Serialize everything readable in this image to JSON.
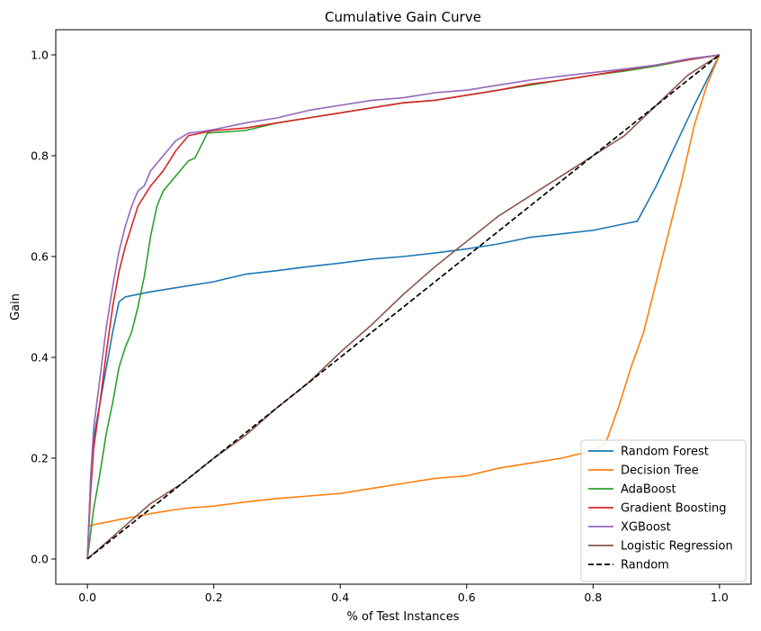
{
  "chart_data": {
    "type": "line",
    "title": "Cumulative Gain Curve",
    "xlabel": "% of Test Instances",
    "ylabel": "Gain",
    "xlim": [
      -0.05,
      1.05
    ],
    "ylim": [
      -0.05,
      1.05
    ],
    "xticks": [
      0.0,
      0.2,
      0.4,
      0.6,
      0.8,
      1.0
    ],
    "yticks": [
      0.0,
      0.2,
      0.4,
      0.6,
      0.8,
      1.0
    ],
    "xtick_labels": [
      "0.0",
      "0.2",
      "0.4",
      "0.6",
      "0.8",
      "1.0"
    ],
    "ytick_labels": [
      "0.0",
      "0.2",
      "0.4",
      "0.6",
      "0.8",
      "1.0"
    ],
    "grid": false,
    "legend": "lower-right",
    "series": [
      {
        "name": "Random Forest",
        "color": "#1f77b4",
        "dash": "solid",
        "points": [
          [
            0,
            0
          ],
          [
            0.005,
            0.15
          ],
          [
            0.01,
            0.24
          ],
          [
            0.02,
            0.31
          ],
          [
            0.03,
            0.38
          ],
          [
            0.04,
            0.45
          ],
          [
            0.05,
            0.51
          ],
          [
            0.06,
            0.52
          ],
          [
            0.1,
            0.53
          ],
          [
            0.15,
            0.54
          ],
          [
            0.2,
            0.55
          ],
          [
            0.25,
            0.565
          ],
          [
            0.3,
            0.572
          ],
          [
            0.35,
            0.58
          ],
          [
            0.4,
            0.587
          ],
          [
            0.45,
            0.595
          ],
          [
            0.5,
            0.6
          ],
          [
            0.55,
            0.607
          ],
          [
            0.6,
            0.615
          ],
          [
            0.65,
            0.625
          ],
          [
            0.7,
            0.638
          ],
          [
            0.75,
            0.645
          ],
          [
            0.8,
            0.652
          ],
          [
            0.85,
            0.665
          ],
          [
            0.87,
            0.67
          ],
          [
            0.9,
            0.74
          ],
          [
            0.93,
            0.82
          ],
          [
            0.96,
            0.9
          ],
          [
            0.98,
            0.95
          ],
          [
            1.0,
            1.0
          ]
        ]
      },
      {
        "name": "Decision Tree",
        "color": "#ff7f0e",
        "dash": "solid",
        "points": [
          [
            0,
            0
          ],
          [
            0.002,
            0.065
          ],
          [
            0.01,
            0.068
          ],
          [
            0.05,
            0.078
          ],
          [
            0.1,
            0.09
          ],
          [
            0.15,
            0.1
          ],
          [
            0.2,
            0.105
          ],
          [
            0.25,
            0.113
          ],
          [
            0.3,
            0.12
          ],
          [
            0.35,
            0.125
          ],
          [
            0.4,
            0.13
          ],
          [
            0.45,
            0.14
          ],
          [
            0.5,
            0.15
          ],
          [
            0.55,
            0.16
          ],
          [
            0.6,
            0.165
          ],
          [
            0.65,
            0.18
          ],
          [
            0.7,
            0.19
          ],
          [
            0.75,
            0.2
          ],
          [
            0.8,
            0.215
          ],
          [
            0.82,
            0.23
          ],
          [
            0.84,
            0.3
          ],
          [
            0.86,
            0.38
          ],
          [
            0.88,
            0.45
          ],
          [
            0.9,
            0.55
          ],
          [
            0.92,
            0.65
          ],
          [
            0.94,
            0.75
          ],
          [
            0.96,
            0.86
          ],
          [
            0.98,
            0.94
          ],
          [
            1.0,
            1.0
          ]
        ]
      },
      {
        "name": "AdaBoost",
        "color": "#2ca02c",
        "dash": "solid",
        "points": [
          [
            0,
            0
          ],
          [
            0.01,
            0.1
          ],
          [
            0.02,
            0.17
          ],
          [
            0.03,
            0.25
          ],
          [
            0.04,
            0.31
          ],
          [
            0.05,
            0.38
          ],
          [
            0.06,
            0.42
          ],
          [
            0.07,
            0.45
          ],
          [
            0.08,
            0.5
          ],
          [
            0.09,
            0.56
          ],
          [
            0.1,
            0.64
          ],
          [
            0.11,
            0.7
          ],
          [
            0.12,
            0.73
          ],
          [
            0.14,
            0.76
          ],
          [
            0.16,
            0.79
          ],
          [
            0.17,
            0.795
          ],
          [
            0.18,
            0.82
          ],
          [
            0.19,
            0.845
          ],
          [
            0.25,
            0.85
          ],
          [
            0.3,
            0.865
          ],
          [
            0.35,
            0.875
          ],
          [
            0.4,
            0.885
          ],
          [
            0.45,
            0.895
          ],
          [
            0.5,
            0.905
          ],
          [
            0.55,
            0.91
          ],
          [
            0.6,
            0.92
          ],
          [
            0.65,
            0.93
          ],
          [
            0.7,
            0.94
          ],
          [
            0.75,
            0.95
          ],
          [
            0.8,
            0.96
          ],
          [
            0.85,
            0.968
          ],
          [
            0.9,
            0.978
          ],
          [
            0.95,
            0.99
          ],
          [
            1.0,
            1.0
          ]
        ]
      },
      {
        "name": "Gradient Boosting",
        "color": "#d62728",
        "dash": "solid",
        "points": [
          [
            0,
            0
          ],
          [
            0.005,
            0.13
          ],
          [
            0.01,
            0.22
          ],
          [
            0.02,
            0.31
          ],
          [
            0.03,
            0.41
          ],
          [
            0.04,
            0.5
          ],
          [
            0.05,
            0.57
          ],
          [
            0.06,
            0.62
          ],
          [
            0.07,
            0.66
          ],
          [
            0.08,
            0.7
          ],
          [
            0.09,
            0.72
          ],
          [
            0.1,
            0.74
          ],
          [
            0.12,
            0.77
          ],
          [
            0.14,
            0.81
          ],
          [
            0.16,
            0.84
          ],
          [
            0.18,
            0.845
          ],
          [
            0.2,
            0.85
          ],
          [
            0.25,
            0.855
          ],
          [
            0.3,
            0.865
          ],
          [
            0.35,
            0.875
          ],
          [
            0.4,
            0.885
          ],
          [
            0.45,
            0.895
          ],
          [
            0.5,
            0.905
          ],
          [
            0.55,
            0.91
          ],
          [
            0.6,
            0.92
          ],
          [
            0.65,
            0.93
          ],
          [
            0.7,
            0.942
          ],
          [
            0.75,
            0.95
          ],
          [
            0.8,
            0.96
          ],
          [
            0.85,
            0.97
          ],
          [
            0.9,
            0.98
          ],
          [
            0.95,
            0.99
          ],
          [
            1.0,
            1.0
          ]
        ]
      },
      {
        "name": "XGBoost",
        "color": "#9467bd",
        "dash": "solid",
        "points": [
          [
            0,
            0
          ],
          [
            0.005,
            0.16
          ],
          [
            0.01,
            0.26
          ],
          [
            0.02,
            0.36
          ],
          [
            0.03,
            0.46
          ],
          [
            0.04,
            0.54
          ],
          [
            0.05,
            0.61
          ],
          [
            0.06,
            0.66
          ],
          [
            0.07,
            0.7
          ],
          [
            0.08,
            0.73
          ],
          [
            0.09,
            0.74
          ],
          [
            0.1,
            0.77
          ],
          [
            0.12,
            0.8
          ],
          [
            0.14,
            0.83
          ],
          [
            0.16,
            0.845
          ],
          [
            0.18,
            0.848
          ],
          [
            0.2,
            0.852
          ],
          [
            0.25,
            0.865
          ],
          [
            0.3,
            0.875
          ],
          [
            0.35,
            0.89
          ],
          [
            0.4,
            0.9
          ],
          [
            0.45,
            0.91
          ],
          [
            0.5,
            0.915
          ],
          [
            0.55,
            0.925
          ],
          [
            0.6,
            0.93
          ],
          [
            0.65,
            0.94
          ],
          [
            0.7,
            0.95
          ],
          [
            0.75,
            0.958
          ],
          [
            0.8,
            0.965
          ],
          [
            0.85,
            0.972
          ],
          [
            0.9,
            0.98
          ],
          [
            0.95,
            0.992
          ],
          [
            1.0,
            1.0
          ]
        ]
      },
      {
        "name": "Logistic Regression",
        "color": "#8c564b",
        "dash": "solid",
        "points": [
          [
            0,
            0
          ],
          [
            0.05,
            0.055
          ],
          [
            0.1,
            0.11
          ],
          [
            0.15,
            0.15
          ],
          [
            0.2,
            0.2
          ],
          [
            0.25,
            0.245
          ],
          [
            0.3,
            0.3
          ],
          [
            0.35,
            0.35
          ],
          [
            0.4,
            0.41
          ],
          [
            0.45,
            0.465
          ],
          [
            0.5,
            0.525
          ],
          [
            0.55,
            0.58
          ],
          [
            0.6,
            0.63
          ],
          [
            0.65,
            0.68
          ],
          [
            0.7,
            0.72
          ],
          [
            0.75,
            0.76
          ],
          [
            0.8,
            0.8
          ],
          [
            0.85,
            0.84
          ],
          [
            0.9,
            0.9
          ],
          [
            0.95,
            0.96
          ],
          [
            1.0,
            1.0
          ]
        ]
      },
      {
        "name": "Random",
        "color": "#000000",
        "dash": "dashed",
        "points": [
          [
            0,
            0
          ],
          [
            1,
            1
          ]
        ]
      }
    ]
  }
}
